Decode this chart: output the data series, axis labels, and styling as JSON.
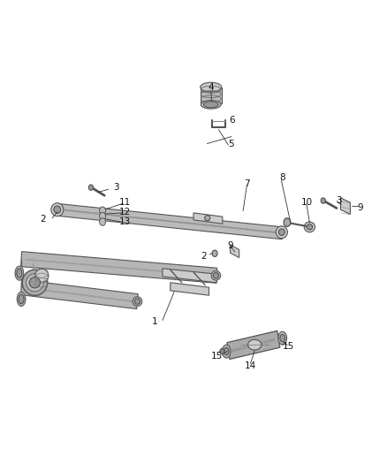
{
  "bg_color": "#ffffff",
  "fig_width": 4.38,
  "fig_height": 5.33,
  "dpi": 100,
  "line_color": "#555555",
  "part_color": "#888888",
  "dark_color": "#333333"
}
